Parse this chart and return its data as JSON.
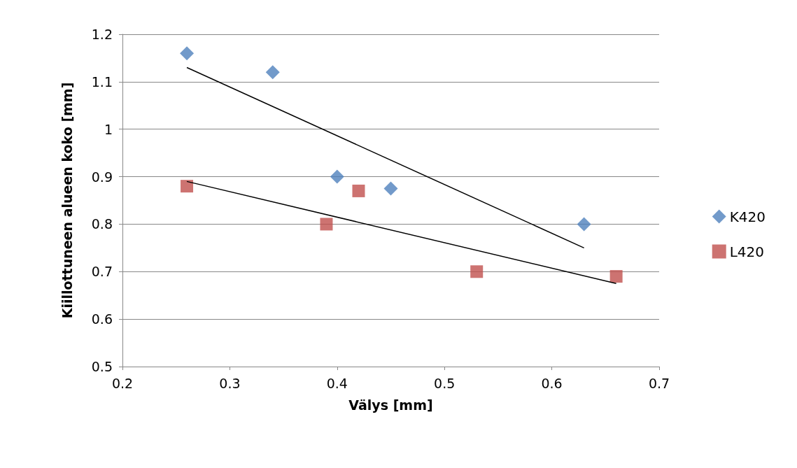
{
  "chart_data": {
    "type": "scatter",
    "xlabel": "Välys [mm]",
    "ylabel": "Kiillottuneen alueen koko [mm]",
    "xlim": [
      0.2,
      0.7
    ],
    "xticks": [
      0.2,
      0.3,
      0.4,
      0.5,
      0.6,
      0.7
    ],
    "ylim": [
      0.5,
      1.2
    ],
    "yticks": [
      0.5,
      0.6,
      0.7,
      0.8,
      0.9,
      1,
      1.1,
      1.2
    ],
    "grid": "y",
    "legend": "right",
    "series": [
      {
        "name": "K420",
        "color": "#4f81bd",
        "marker": "diamond",
        "x": [
          0.26,
          0.34,
          0.4,
          0.45,
          0.63
        ],
        "values": [
          1.16,
          1.12,
          0.9,
          0.875,
          0.8
        ]
      },
      {
        "name": "L420",
        "color": "#c0504d",
        "marker": "square",
        "x": [
          0.26,
          0.39,
          0.42,
          0.53,
          0.66
        ],
        "values": [
          0.88,
          0.8,
          0.87,
          0.7,
          0.69
        ]
      },
      {
        "type": "line",
        "color": "#000000",
        "marker": "none",
        "x": [
          0.26,
          0.63
        ],
        "values": [
          1.13,
          0.75
        ]
      },
      {
        "type": "line",
        "color": "#000000",
        "marker": "none",
        "x": [
          0.26,
          0.66
        ],
        "values": [
          0.89,
          0.675
        ]
      }
    ]
  }
}
